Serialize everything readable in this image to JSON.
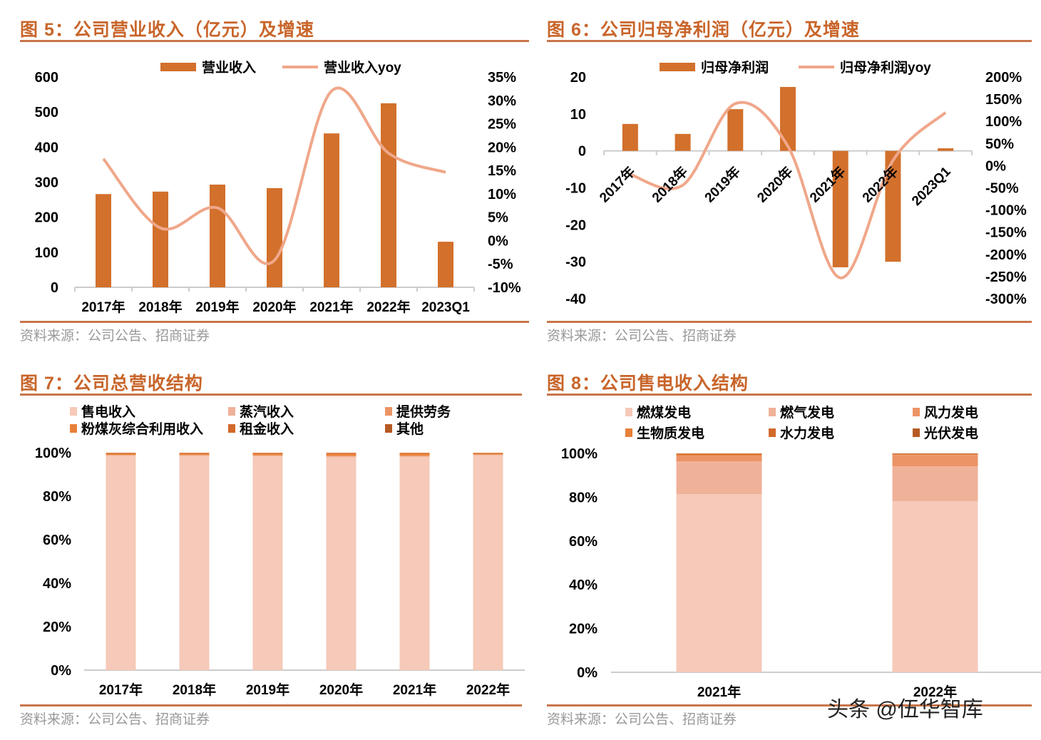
{
  "figures": [
    {
      "title": "图 5：公司营业收入（亿元）及增速",
      "source": "资料来源：公司公告、招商证券"
    },
    {
      "title": "图 6：公司归母净利润（亿元）及增速",
      "source": "资料来源：公司公告、招商证券"
    },
    {
      "title": "图 7：公司总营收结构",
      "source": "资料来源：公司公告、招商证券"
    },
    {
      "title": "图 8：公司售电收入结构",
      "source": "资料来源：公司公告、招商证券"
    }
  ],
  "watermark": "头条 @伍华智库",
  "colors": {
    "bar": "#d2702c",
    "line": "#f0a78a",
    "stack": [
      "#f6c9b8",
      "#f0b199",
      "#ec9466",
      "#e8803a",
      "#d2692a",
      "#b65a24"
    ]
  },
  "chart_data": [
    {
      "type": "bar+line",
      "categories": [
        "2017年",
        "2018年",
        "2019年",
        "2020年",
        "2021年",
        "2022年",
        "2023Q1"
      ],
      "series": [
        {
          "name": "营业收入",
          "axis": "left",
          "values": [
            266,
            273,
            293,
            283,
            439,
            525,
            130
          ]
        },
        {
          "name": "营业收入yoy",
          "axis": "right",
          "type": "line",
          "values": [
            17.5,
            2.7,
            7.0,
            -4.2,
            32.0,
            18.7,
            14.6
          ]
        }
      ],
      "ylim": [
        0,
        600
      ],
      "yticks": [
        "0",
        "100",
        "200",
        "300",
        "400",
        "500",
        "600"
      ],
      "y2lim": [
        -10,
        35
      ],
      "y2ticks": [
        "-10%",
        "-5%",
        "0%",
        "5%",
        "10%",
        "15%",
        "20%",
        "25%",
        "30%",
        "35%"
      ],
      "legend": "top",
      "grid": false
    },
    {
      "type": "bar+line",
      "categories": [
        "2017年",
        "2018年",
        "2019年",
        "2020年",
        "2021年",
        "2022年",
        "2023Q1"
      ],
      "series": [
        {
          "name": "归母净利润",
          "axis": "left",
          "values": [
            7.3,
            4.6,
            11.3,
            17.3,
            -31.5,
            -30.0,
            0.7
          ]
        },
        {
          "name": "归母净利润yoy",
          "axis": "right",
          "type": "line",
          "values": [
            -20,
            -44,
            140,
            44,
            -253,
            12,
            120
          ]
        }
      ],
      "ylim": [
        -40,
        20
      ],
      "yticks": [
        "-40",
        "-30",
        "-20",
        "-10",
        "0",
        "10",
        "20"
      ],
      "y2lim": [
        -300,
        200
      ],
      "y2ticks": [
        "-300%",
        "-250%",
        "-200%",
        "-150%",
        "-100%",
        "-50%",
        "0%",
        "50%",
        "100%",
        "150%",
        "200%"
      ],
      "legend": "top",
      "grid": false
    },
    {
      "type": "stacked-bar",
      "categories": [
        "2017年",
        "2018年",
        "2019年",
        "2020年",
        "2021年",
        "2022年"
      ],
      "series": [
        {
          "name": "售电收入",
          "values": [
            98.6,
            98.5,
            98.4,
            97.8,
            98.0,
            98.8
          ]
        },
        {
          "name": "蒸汽收入",
          "values": [
            0.2,
            0.3,
            0.3,
            0.5,
            0.4,
            0.2
          ]
        },
        {
          "name": "提供劳务",
          "values": [
            0.1,
            0.1,
            0.1,
            0.3,
            0.2,
            0.1
          ]
        },
        {
          "name": "粉煤灰综合利用收入",
          "values": [
            0.8,
            0.8,
            0.9,
            1.1,
            1.1,
            0.7
          ]
        },
        {
          "name": "租金收入",
          "values": [
            0.2,
            0.2,
            0.2,
            0.2,
            0.2,
            0.1
          ]
        },
        {
          "name": "其他",
          "values": [
            0.1,
            0.1,
            0.1,
            0.1,
            0.1,
            0.1
          ]
        }
      ],
      "ylim": [
        0,
        100
      ],
      "yticks": [
        "0%",
        "20%",
        "40%",
        "60%",
        "80%",
        "100%"
      ],
      "legend": "top",
      "grid": false
    },
    {
      "type": "stacked-bar",
      "categories": [
        "2021年",
        "2022年"
      ],
      "series": [
        {
          "name": "燃煤发电",
          "values": [
            81.4,
            78.2
          ]
        },
        {
          "name": "燃气发电",
          "values": [
            15.0,
            15.9
          ]
        },
        {
          "name": "风力发电",
          "values": [
            2.6,
            5.2
          ]
        },
        {
          "name": "生物质发电",
          "values": [
            0.5,
            0.3
          ]
        },
        {
          "name": "水力发电",
          "values": [
            0.4,
            0.2
          ]
        },
        {
          "name": "光伏发电",
          "values": [
            0.1,
            0.2
          ]
        }
      ],
      "ylim": [
        0,
        100
      ],
      "yticks": [
        "0%",
        "20%",
        "40%",
        "60%",
        "80%",
        "100%"
      ],
      "legend": "top",
      "grid": false
    }
  ]
}
